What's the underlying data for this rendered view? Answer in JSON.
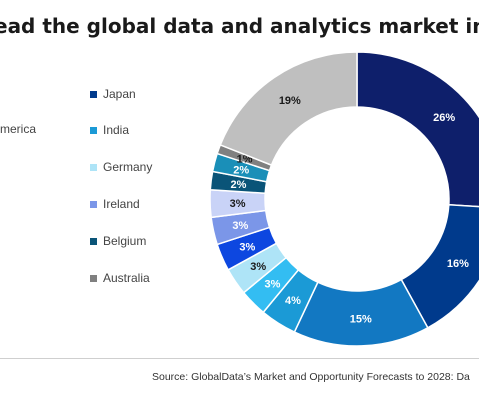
{
  "title": "ead the global data and analytics market in phar",
  "source": "Source: GlobalData’s Market and Opportunity Forecasts to 2028: Da",
  "chart_data": {
    "type": "pie",
    "style": "donut",
    "legend": [
      {
        "name": "America",
        "color": "#7f7f7f",
        "has_swatch": false
      },
      {
        "name": "Japan",
        "color": "#003a8c"
      },
      {
        "name": "India",
        "color": "#1b9ad6"
      },
      {
        "name": "Germany",
        "color": "#aee4f7"
      },
      {
        "name": "Ireland",
        "color": "#7b96e8"
      },
      {
        "name": "Belgium",
        "color": "#0a5478"
      },
      {
        "name": "Australia",
        "color": "#808080"
      }
    ],
    "slices": [
      {
        "value": 26,
        "label": "26%",
        "color": "#0e1f6b",
        "label_color": "#ffffff"
      },
      {
        "value": 16,
        "label": "16%",
        "color": "#003a8c",
        "label_color": "#ffffff"
      },
      {
        "value": 15,
        "label": "15%",
        "color": "#1278c2",
        "label_color": "#ffffff"
      },
      {
        "value": 4,
        "label": "4%",
        "color": "#1b9ad6",
        "label_color": "#ffffff"
      },
      {
        "value": 3,
        "label": "3%",
        "color": "#33bdf2",
        "label_color": "#ffffff"
      },
      {
        "value": 3,
        "label": "3%",
        "color": "#aee4f7",
        "label_color": "#1a1a1a"
      },
      {
        "value": 3,
        "label": "3%",
        "color": "#0d47e0",
        "label_color": "#ffffff"
      },
      {
        "value": 3,
        "label": "3%",
        "color": "#7b96e8",
        "label_color": "#ffffff"
      },
      {
        "value": 3,
        "label": "3%",
        "color": "#c9d3f7",
        "label_color": "#1a1a1a"
      },
      {
        "value": 2,
        "label": "2%",
        "color": "#0a5478",
        "label_color": "#ffffff"
      },
      {
        "value": 2,
        "label": "2%",
        "color": "#1a8fb8",
        "label_color": "#ffffff"
      },
      {
        "value": 1,
        "label": "1%",
        "color": "#808080",
        "label_color": "#1a1a1a"
      },
      {
        "value": 19,
        "label": "19%",
        "color": "#bfbfbf",
        "label_color": "#1a1a1a"
      }
    ]
  }
}
